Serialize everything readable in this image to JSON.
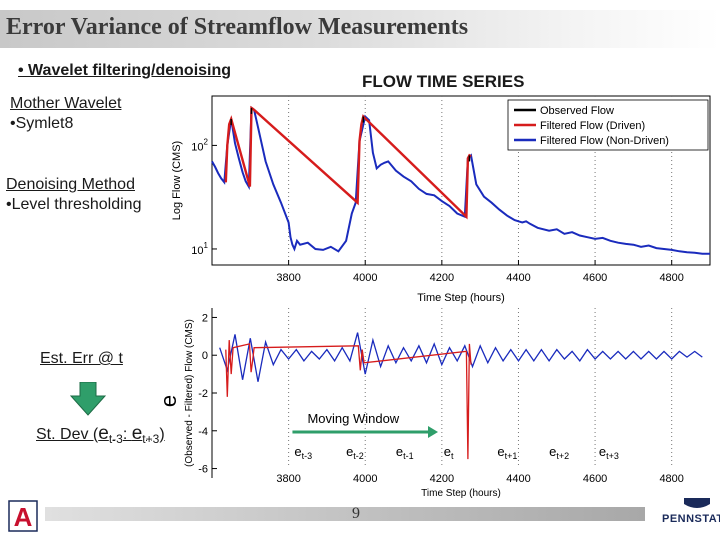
{
  "slide": {
    "title": "Error Variance of Streamflow Measurements",
    "bullet1": "• Wavelet filtering/denoising",
    "mother_wavelet_heading": "Mother Wavelet",
    "mother_wavelet_value": "•Symlet8",
    "denoise_heading": "Denoising Method",
    "denoise_value": "•Level thresholding",
    "est_err": "Est. Err @ t",
    "st_dev_prefix": "St. Dev (",
    "st_dev_e1": "e",
    "st_dev_sub1": "t-3",
    "st_dev_mid": ": ",
    "st_dev_e2": "e",
    "st_dev_sub2": "t+3",
    "st_dev_suffix": ")",
    "page_number": "9",
    "logo_left": "A",
    "logo_right": "PENNSTATE"
  },
  "colors": {
    "observed": "#000000",
    "filtered_driven": "#d61c1c",
    "filtered_nondriven": "#1a2bbd",
    "title_text": "#3a3a3a",
    "arrow": "#2f9e6a",
    "logo_red": "#c8102e",
    "logo_navy": "#1a2a5a"
  },
  "chart_data": [
    {
      "type": "line",
      "title": "FLOW TIME SERIES",
      "xlabel": "Time Step (hours)",
      "ylabel": "Log Flow (CMS)",
      "xlim": [
        3600,
        4900
      ],
      "ylim": [
        7,
        300
      ],
      "yscale": "log",
      "xticks": [
        3800,
        4000,
        4200,
        4400,
        4600,
        4800
      ],
      "yticks": [
        {
          "base": "10",
          "exp": "1",
          "value": 10
        },
        {
          "base": "10",
          "exp": "2",
          "value": 100
        }
      ],
      "grid": "vertical dotted",
      "legend_position": "top-right",
      "legend": [
        "Observed Flow",
        "Filtered Flow (Driven)",
        "Filtered Flow (Non-Driven)"
      ],
      "series": [
        {
          "name": "Filtered Flow (Non-Driven)",
          "x": [
            3600,
            3608,
            3616,
            3624,
            3632,
            3640,
            3650,
            3660,
            3670,
            3680,
            3688,
            3696,
            3703,
            3710,
            3720,
            3740,
            3760,
            3780,
            3800,
            3805,
            3810,
            3815,
            3822,
            3830,
            3850,
            3870,
            3890,
            3910,
            3930,
            3950,
            3965,
            3975,
            3985,
            4000,
            4010,
            4020,
            4030,
            4040,
            4050,
            4060,
            4080,
            4100,
            4120,
            4140,
            4160,
            4180,
            4200,
            4220,
            4240,
            4260,
            4268,
            4276,
            4290,
            4310,
            4330,
            4350,
            4370,
            4390,
            4400,
            4410,
            4420,
            4430,
            4450,
            4480,
            4500,
            4520,
            4540,
            4560,
            4580,
            4600,
            4620,
            4640,
            4660,
            4680,
            4700,
            4720,
            4740,
            4760,
            4780,
            4800,
            4820,
            4840,
            4860,
            4880,
            4900
          ],
          "values": [
            70,
            62,
            54,
            48,
            44,
            100,
            180,
            105,
            75,
            55,
            45,
            40,
            230,
            220,
            150,
            70,
            42,
            28,
            18,
            13,
            11,
            10,
            12,
            11,
            11.5,
            10,
            9.8,
            10.5,
            9.5,
            12,
            22,
            28,
            110,
            190,
            175,
            85,
            60,
            65,
            68,
            70,
            57,
            50,
            45,
            38,
            34,
            33,
            29,
            26,
            22,
            20.5,
            75,
            80,
            42,
            32,
            28,
            24,
            21,
            19,
            18.5,
            18,
            18.5,
            17.5,
            16,
            15,
            15.5,
            14,
            14.5,
            13.5,
            13,
            12.5,
            12.8,
            12,
            11.5,
            11.2,
            11,
            10.5,
            10.8,
            10.2,
            10,
            9.8,
            9.5,
            9.3,
            9.2,
            9,
            9
          ]
        },
        {
          "name": "Filtered Flow (Driven)",
          "x": [
            3636,
            3640,
            3645,
            3650,
            3652,
            3699,
            3703,
            3707,
            3980,
            3985,
            3990,
            3995,
            3998,
            4264,
            4268,
            4272,
            4276
          ],
          "values": [
            44,
            100,
            160,
            180,
            170,
            40,
            230,
            225,
            28,
            110,
            160,
            190,
            185,
            20.5,
            75,
            80,
            78
          ]
        },
        {
          "name": "Observed Flow",
          "x": [
            3650,
            3703,
            3995,
            4272
          ],
          "values": [
            180,
            230,
            190,
            80
          ]
        }
      ]
    },
    {
      "type": "line",
      "title": "",
      "xlabel": "Time Step (hours)",
      "ylabel": "(Observed - Filtered) Flow (CMS)",
      "xlim": [
        3600,
        4900
      ],
      "ylim": [
        -6.5,
        2.5
      ],
      "xticks": [
        3800,
        4000,
        4200,
        4400,
        4600,
        4800
      ],
      "yticks": [
        2,
        0,
        -2,
        -4,
        -6
      ],
      "grid": "vertical dotted",
      "series": [
        {
          "name": "Filtered Flow (Driven)",
          "x": [
            3636,
            3640,
            3645,
            3650,
            3655,
            3698,
            3702,
            3706,
            3710,
            3982,
            3987,
            3992,
            3997,
            4264,
            4268,
            4272,
            4276
          ],
          "values": [
            0.3,
            -2.2,
            0.8,
            -1.0,
            0.4,
            0.6,
            -0.9,
            -0.3,
            0.4,
            0.5,
            -0.8,
            0.3,
            -0.4,
            0.2,
            -5.5,
            0.6,
            -0.5
          ]
        },
        {
          "name": "Filtered Flow (Non-Driven)",
          "x": [
            3620,
            3640,
            3660,
            3680,
            3700,
            3720,
            3740,
            3760,
            3780,
            3800,
            3820,
            3840,
            3860,
            3880,
            3900,
            3920,
            3940,
            3960,
            3980,
            4000,
            4020,
            4040,
            4060,
            4080,
            4100,
            4120,
            4140,
            4160,
            4180,
            4200,
            4220,
            4240,
            4260,
            4280,
            4300,
            4320,
            4340,
            4360,
            4380,
            4400,
            4420,
            4440,
            4460,
            4480,
            4500,
            4520,
            4540,
            4560,
            4580,
            4600,
            4620,
            4640,
            4660,
            4680,
            4700,
            4720,
            4740,
            4760,
            4780,
            4800,
            4820,
            4840,
            4860,
            4880
          ],
          "values": [
            0.4,
            -0.8,
            1.1,
            -1.3,
            0.9,
            -1.4,
            0.7,
            -0.5,
            0.3,
            -0.2,
            0.3,
            -0.3,
            0.2,
            -0.2,
            0.3,
            -0.3,
            0.4,
            -0.3,
            1.2,
            -1.0,
            0.8,
            -0.6,
            0.5,
            -0.4,
            0.4,
            -0.3,
            0.5,
            -0.4,
            0.6,
            -0.5,
            0.4,
            -0.3,
            0.5,
            -0.6,
            0.5,
            -0.4,
            0.4,
            -0.3,
            0.3,
            -0.3,
            0.3,
            -0.3,
            0.3,
            -0.3,
            0.3,
            -0.2,
            0.2,
            -0.3,
            0.3,
            -0.2,
            0.2,
            -0.2,
            0.2,
            -0.2,
            0.2,
            -0.2,
            0.2,
            -0.2,
            0.2,
            -0.2,
            0.2,
            -0.1,
            0.2,
            -0.1
          ]
        }
      ],
      "annotations": {
        "moving_window_label": "Moving Window",
        "window_start_x": 3810,
        "window_end_x": 4190,
        "window_labels": [
          {
            "e": "e",
            "sub": "t-3",
            "x": 3815
          },
          {
            "e": "e",
            "sub": "t-2",
            "x": 3950
          },
          {
            "e": "e",
            "sub": "t-1",
            "x": 4080
          },
          {
            "e": "e",
            "sub": "t",
            "x": 4205
          },
          {
            "e": "e",
            "sub": "t+1",
            "x": 4345
          },
          {
            "e": "e",
            "sub": "t+2",
            "x": 4480
          },
          {
            "e": "e",
            "sub": "t+3",
            "x": 4610
          }
        ],
        "side_symbol": "e"
      }
    }
  ]
}
